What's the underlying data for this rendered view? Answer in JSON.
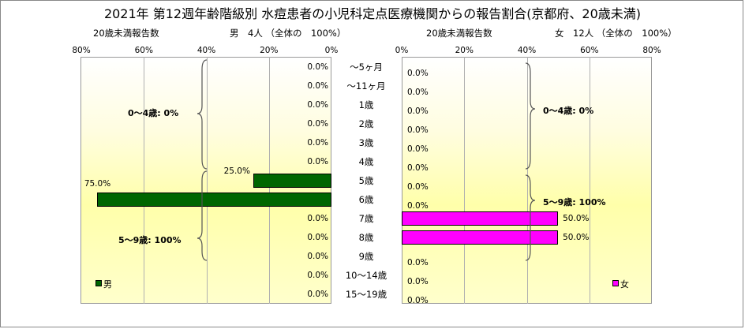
{
  "title": "2021年 第12週年齢階級別 水痘患者の小児科定点医療機関からの報告割合(京都府、20歳未満)",
  "left": {
    "subtitle": "20歳未満報告数",
    "summary": "男　4人 （全体の　100%）",
    "legend": "男",
    "group_labels": [
      "0～4歳: 0%",
      "5～9歳: 100%"
    ]
  },
  "right": {
    "subtitle": "20歳未満報告数",
    "summary": "女　12人 （全体の　100%）",
    "legend": "女",
    "group_labels": [
      "0～4歳: 0%",
      "5～9歳: 100%"
    ]
  },
  "colors": {
    "male": "#006600",
    "female": "#ff00ff"
  },
  "chart_data": {
    "type": "bar",
    "orientation": "horizontal-butterfly",
    "categories": [
      "～5ヶ月",
      "～11ヶ月",
      "1歳",
      "2歳",
      "3歳",
      "4歳",
      "5歳",
      "6歳",
      "7歳",
      "8歳",
      "9歳",
      "10～14歳",
      "15～19歳"
    ],
    "left_ticks": [
      "80%",
      "60%",
      "40%",
      "20%",
      "0%"
    ],
    "right_ticks": [
      "0%",
      "20%",
      "40%",
      "60%",
      "80%"
    ],
    "xlim": [
      0,
      80
    ],
    "grid": true,
    "series": [
      {
        "name": "男",
        "values": [
          0,
          0,
          0,
          0,
          0,
          0,
          25,
          75,
          0,
          0,
          0,
          0,
          0
        ],
        "labels": [
          "0.0%",
          "0.0%",
          "0.0%",
          "0.0%",
          "0.0%",
          "0.0%",
          "25.0%",
          "75.0%",
          "0.0%",
          "0.0%",
          "0.0%",
          "0.0%",
          "0.0%"
        ]
      },
      {
        "name": "女",
        "values": [
          0,
          0,
          0,
          0,
          0,
          0,
          0,
          0,
          50,
          50,
          0,
          0,
          0
        ],
        "labels": [
          "0.0%",
          "0.0%",
          "0.0%",
          "0.0%",
          "0.0%",
          "0.0%",
          "0.0%",
          "0.0%",
          "50.0%",
          "50.0%",
          "0.0%",
          "0.0%",
          "0.0%"
        ]
      }
    ]
  }
}
